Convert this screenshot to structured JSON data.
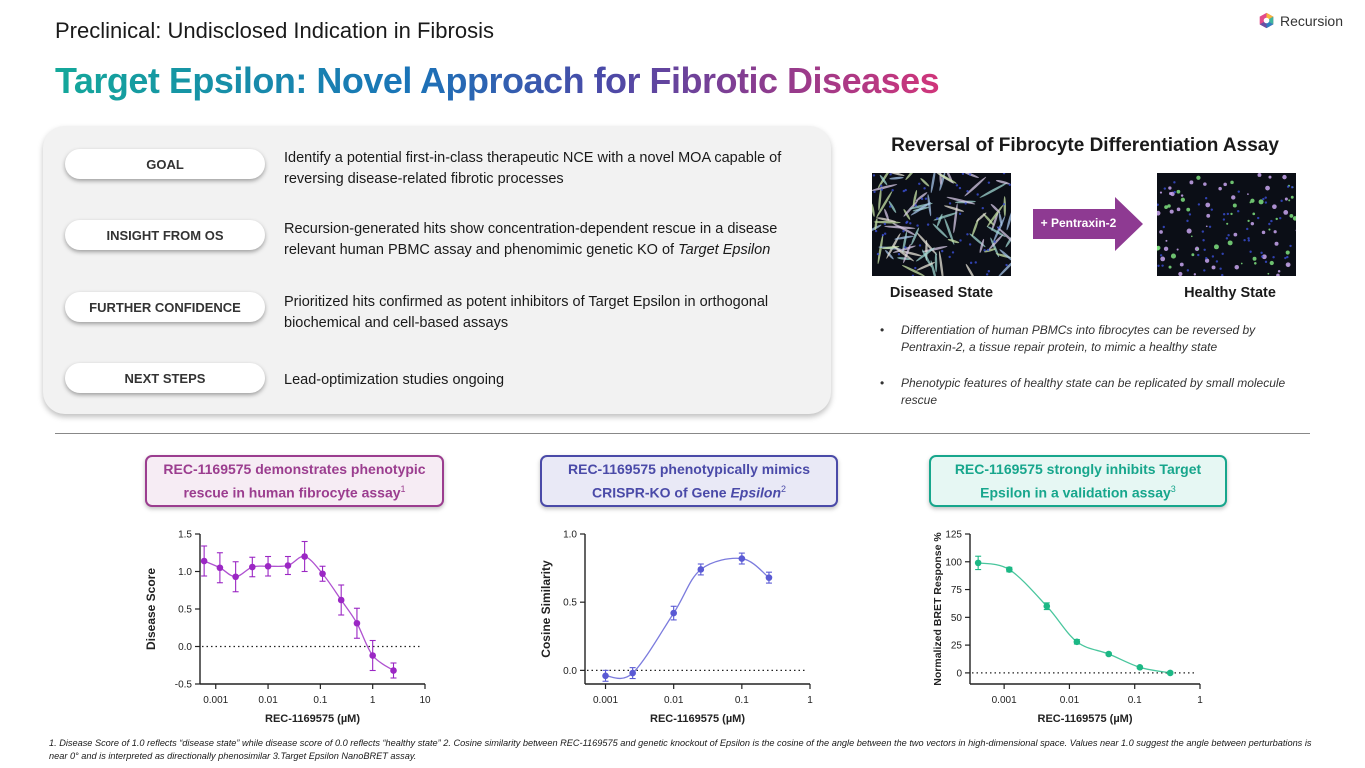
{
  "header": {
    "subtitle": "Preclinical: Undisclosed Indication in Fibrosis",
    "title": "Target Epsilon: Novel Approach for Fibrotic Diseases",
    "logo_text": "Recursion"
  },
  "rows": [
    {
      "label": "GOAL",
      "text": "Identify a potential first-in-class therapeutic NCE with a novel MOA capable of reversing disease-related fibrotic processes"
    },
    {
      "label": "INSIGHT FROM OS",
      "text_before": "Recursion-generated hits show concentration-dependent rescue in a disease relevant human PBMC assay and phenomimic genetic KO of ",
      "text_italic": "Target Epsilon"
    },
    {
      "label": "FURTHER CONFIDENCE",
      "text": "Prioritized hits confirmed as potent inhibitors of Target Epsilon in orthogonal biochemical and cell-based assays"
    },
    {
      "label": "NEXT STEPS",
      "text": "Lead-optimization studies ongoing"
    }
  ],
  "assay": {
    "title": "Reversal of Fibrocyte Differentiation Assay",
    "arrow_label": "+ Pentraxin-2",
    "left_label": "Diseased State",
    "right_label": "Healthy State",
    "bullets": [
      "Differentiation of human PBMCs into fibrocytes can be reversed by Pentraxin-2, a tissue repair protein, to mimic a healthy state",
      "Phenotypic features of healthy state can be replicated by small molecule rescue"
    ]
  },
  "highlights": [
    {
      "line1": "REC-1169575 demonstrates phenotypic",
      "line2": "rescue in human fibrocyte assay",
      "sup": "1",
      "color": "#9b3d8f",
      "bg": "#f6ecf4"
    },
    {
      "line1": "REC-1169575 phenotypically mimics",
      "line2": "CRISPR-KO of Gene ",
      "italic": "Epsilon",
      "sup": "2",
      "color": "#4a4aa8",
      "bg": "#e9e9f6"
    },
    {
      "line1": "REC-1169575 strongly inhibits Target",
      "line2": "Epsilon in a validation assay",
      "sup": "3",
      "color": "#17a68c",
      "bg": "#e6f7f3"
    }
  ],
  "chart_data": [
    {
      "type": "scatter",
      "xscale": "log",
      "xlabel": "REC-1169575 (µM)",
      "ylabel": "Disease Score",
      "xlim": [
        0.0005,
        10
      ],
      "ylim": [
        -0.5,
        1.5
      ],
      "xticks": [
        "0.001",
        "0.01",
        "0.1",
        "1",
        "10"
      ],
      "yticks": [
        "-0.5",
        "0.0",
        "0.5",
        "1.0",
        "1.5"
      ],
      "reference_line": 0,
      "color": "#9b27c4",
      "x": [
        0.0006,
        0.0012,
        0.0024,
        0.005,
        0.01,
        0.024,
        0.05,
        0.11,
        0.25,
        0.5,
        1.0,
        2.5
      ],
      "y": [
        1.14,
        1.05,
        0.93,
        1.06,
        1.07,
        1.08,
        1.2,
        0.97,
        0.62,
        0.31,
        -0.12,
        -0.32
      ],
      "error": [
        0.2,
        0.2,
        0.2,
        0.13,
        0.13,
        0.12,
        0.2,
        0.1,
        0.2,
        0.2,
        0.2,
        0.1
      ]
    },
    {
      "type": "scatter",
      "xscale": "log",
      "xlabel": "REC-1169575 (µM)",
      "ylabel": "Cosine Similarity",
      "xlim": [
        0.0005,
        1
      ],
      "ylim": [
        -0.1,
        1.0
      ],
      "xticks": [
        "0.001",
        "0.01",
        "0.1",
        "1"
      ],
      "yticks": [
        "0.0",
        "0.5",
        "1.0"
      ],
      "reference_line": 0,
      "color": "#5a5ad4",
      "x": [
        0.001,
        0.0025,
        0.01,
        0.025,
        0.1,
        0.25
      ],
      "y": [
        -0.04,
        -0.02,
        0.42,
        0.74,
        0.82,
        0.68
      ],
      "error": [
        0.04,
        0.04,
        0.05,
        0.04,
        0.04,
        0.04
      ]
    },
    {
      "type": "scatter",
      "xscale": "log",
      "xlabel": "REC-1169575 (µM)",
      "ylabel": "Normalized BRET Response %",
      "xlim": [
        0.0003,
        1
      ],
      "ylim": [
        -10,
        125
      ],
      "xticks": [
        "0.001",
        "0.01",
        "0.1",
        "1"
      ],
      "yticks": [
        "0",
        "25",
        "50",
        "75",
        "100",
        "125"
      ],
      "reference_line": 0,
      "color": "#1cb885",
      "x": [
        0.0004,
        0.0012,
        0.0045,
        0.013,
        0.04,
        0.12,
        0.35
      ],
      "y": [
        99,
        93,
        60,
        28,
        17,
        5,
        0
      ],
      "error": [
        6,
        2,
        3,
        2,
        1,
        1,
        1
      ]
    }
  ],
  "footnote": "1. Disease Score of 1.0 reflects “disease state” while disease score of 0.0 reflects “healthy state”  2. Cosine similarity between REC-1169575 and genetic knockout of Epsilon is the cosine of the angle between the two vectors in high-dimensional space. Values near 1.0 suggest the angle between perturbations is near 0° and is interpreted as directionally phenosimilar  3.Target Epsilon NanoBRET assay."
}
